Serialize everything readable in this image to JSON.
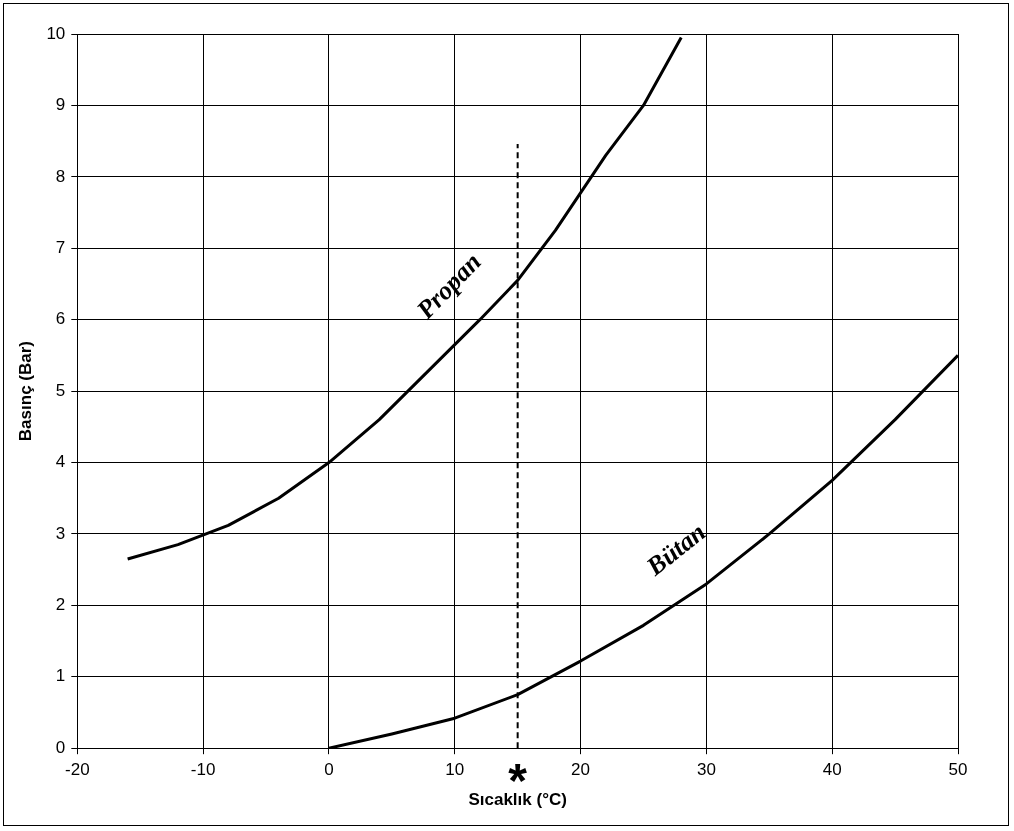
{
  "chart_data": {
    "type": "line",
    "xlabel": "Sıcaklık (°C)",
    "ylabel": "Basınç (Bar)",
    "xlim": [
      -20,
      50
    ],
    "xticks": [
      -20,
      -10,
      0,
      10,
      20,
      30,
      40,
      50
    ],
    "ylim": [
      0,
      10
    ],
    "yticks": [
      0,
      1,
      2,
      3,
      4,
      5,
      6,
      7,
      8,
      9,
      10
    ],
    "grid": true,
    "legend": false,
    "marker": "none",
    "line_style": "solid",
    "series": [
      {
        "name": "Propan",
        "color": "#000000",
        "x": [
          -16,
          -12,
          -8,
          -4,
          0,
          4,
          8,
          12,
          15,
          18,
          22,
          25,
          28
        ],
        "values": [
          2.65,
          2.85,
          3.12,
          3.5,
          4.0,
          4.6,
          5.3,
          6.0,
          6.55,
          7.25,
          8.3,
          9.0,
          9.95
        ]
      },
      {
        "name": "Bütan",
        "color": "#000000",
        "x": [
          0,
          5,
          10,
          15,
          20,
          25,
          30,
          35,
          40,
          45,
          50
        ],
        "values": [
          0,
          0.2,
          0.42,
          0.75,
          1.22,
          1.72,
          2.3,
          3.0,
          3.75,
          4.6,
          5.5
        ]
      }
    ],
    "ref_lines": [
      {
        "axis": "x",
        "value": 15,
        "label": "*",
        "line_style": "dashed",
        "color": "#000000"
      }
    ]
  }
}
